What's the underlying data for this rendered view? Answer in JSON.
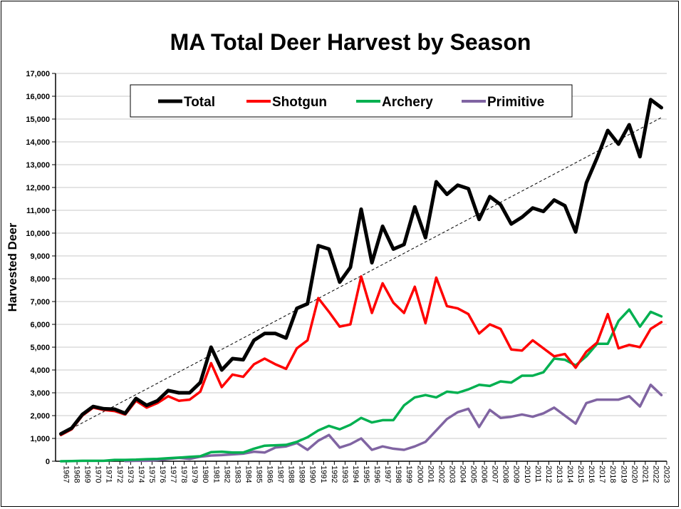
{
  "chart_data": {
    "type": "line",
    "title": "MA Total Deer Harvest by Season",
    "xlabel": "",
    "ylabel": "Harvested Deer",
    "ylim": [
      0,
      17000
    ],
    "ytick_step": 1000,
    "grid": true,
    "legend_placement": "top",
    "x": [
      1967,
      1968,
      1969,
      1970,
      1971,
      1972,
      1973,
      1974,
      1975,
      1976,
      1977,
      1978,
      1979,
      1980,
      1981,
      1982,
      1983,
      1984,
      1985,
      1986,
      1987,
      1988,
      1989,
      1990,
      1991,
      1992,
      1993,
      1994,
      1995,
      1996,
      1997,
      1998,
      1999,
      2000,
      2001,
      2002,
      2003,
      2004,
      2005,
      2006,
      2007,
      2008,
      2009,
      2010,
      2011,
      2012,
      2013,
      2014,
      2015,
      2016,
      2017,
      2018,
      2019,
      2020,
      2021,
      2022,
      2023
    ],
    "series": [
      {
        "name": "Total",
        "color": "#000000",
        "values": [
          1200,
          1450,
          2050,
          2400,
          2300,
          2280,
          2100,
          2750,
          2450,
          2650,
          3100,
          3000,
          3000,
          3450,
          5000,
          4000,
          4500,
          4450,
          5300,
          5600,
          5600,
          5400,
          6700,
          6900,
          9450,
          9300,
          7850,
          8500,
          11050,
          8700,
          10300,
          9300,
          9500,
          11150,
          9800,
          12250,
          11700,
          12100,
          11950,
          10600,
          11600,
          11250,
          10400,
          10700,
          11100,
          10950,
          11450,
          11200,
          10050,
          12200,
          13300,
          14500,
          13900,
          14750,
          13350,
          15850,
          15500
        ]
      },
      {
        "name": "Shotgun",
        "color": "#ff0000",
        "values": [
          1150,
          1400,
          2000,
          2350,
          2250,
          2200,
          2050,
          2650,
          2350,
          2550,
          2850,
          2650,
          2700,
          3050,
          4300,
          3250,
          3800,
          3700,
          4250,
          4500,
          4250,
          4050,
          4950,
          5300,
          7150,
          6550,
          5900,
          6000,
          8100,
          6500,
          7800,
          6950,
          6500,
          7650,
          6050,
          8050,
          6800,
          6700,
          6450,
          5600,
          6000,
          5800,
          4900,
          4850,
          5300,
          4950,
          4600,
          4700,
          4100,
          4800,
          5200,
          6450,
          4950,
          5100,
          5000,
          5800,
          6100
        ]
      },
      {
        "name": "Archery",
        "color": "#00b050",
        "values": [
          0,
          10,
          20,
          20,
          20,
          60,
          60,
          70,
          90,
          100,
          130,
          160,
          190,
          220,
          400,
          420,
          380,
          380,
          550,
          680,
          700,
          720,
          850,
          1050,
          1350,
          1550,
          1400,
          1600,
          1900,
          1700,
          1800,
          1800,
          2450,
          2800,
          2900,
          2800,
          3050,
          3000,
          3150,
          3350,
          3300,
          3500,
          3450,
          3750,
          3750,
          3900,
          4500,
          4450,
          4200,
          4600,
          5150,
          5150,
          6150,
          6650,
          5900,
          6550,
          6350
        ]
      },
      {
        "name": "Primitive",
        "color": "#8064a2",
        "values": [
          null,
          null,
          null,
          null,
          null,
          null,
          10,
          20,
          20,
          50,
          100,
          150,
          100,
          200,
          250,
          270,
          300,
          330,
          420,
          380,
          600,
          650,
          800,
          500,
          900,
          1150,
          600,
          750,
          1000,
          500,
          650,
          550,
          500,
          650,
          850,
          1350,
          1850,
          2150,
          2300,
          1500,
          2250,
          1900,
          1950,
          2050,
          1950,
          2100,
          2350,
          2000,
          1650,
          2550,
          2700,
          2700,
          2700,
          2850,
          2400,
          3350,
          2900
        ]
      }
    ],
    "trendline": {
      "of": "Total",
      "type": "linear",
      "style": "dashed",
      "color": "#000000"
    }
  }
}
